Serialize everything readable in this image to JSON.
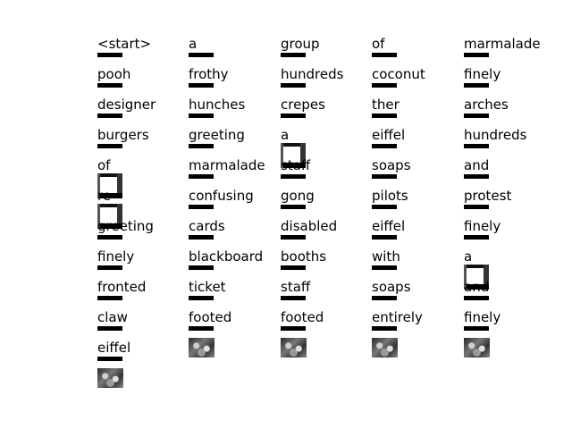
{
  "columns": [
    [
      "<start>",
      "pooh",
      "designer",
      "burgers",
      "of",
      "re",
      "greeting",
      "finely",
      "fronted",
      "claw",
      "eiffel"
    ],
    [
      "a",
      "frothy",
      "hunches",
      "greeting",
      "marmalade",
      "confusing",
      "cards",
      "blackboard",
      "ticket",
      "footed"
    ],
    [
      "group",
      "hundreds",
      "crepes",
      "a",
      "staff",
      "gong",
      "disabled",
      "booths",
      "staff",
      "footed"
    ],
    [
      "of",
      "coconut",
      "ther",
      "eiffel",
      "soaps",
      "pilots",
      "eiffel",
      "with",
      "soaps",
      "entirely"
    ],
    [
      "marmalade",
      "finely",
      "arches",
      "hundreds",
      "and",
      "protest",
      "finely",
      "a",
      "and",
      "finely"
    ]
  ]
}
